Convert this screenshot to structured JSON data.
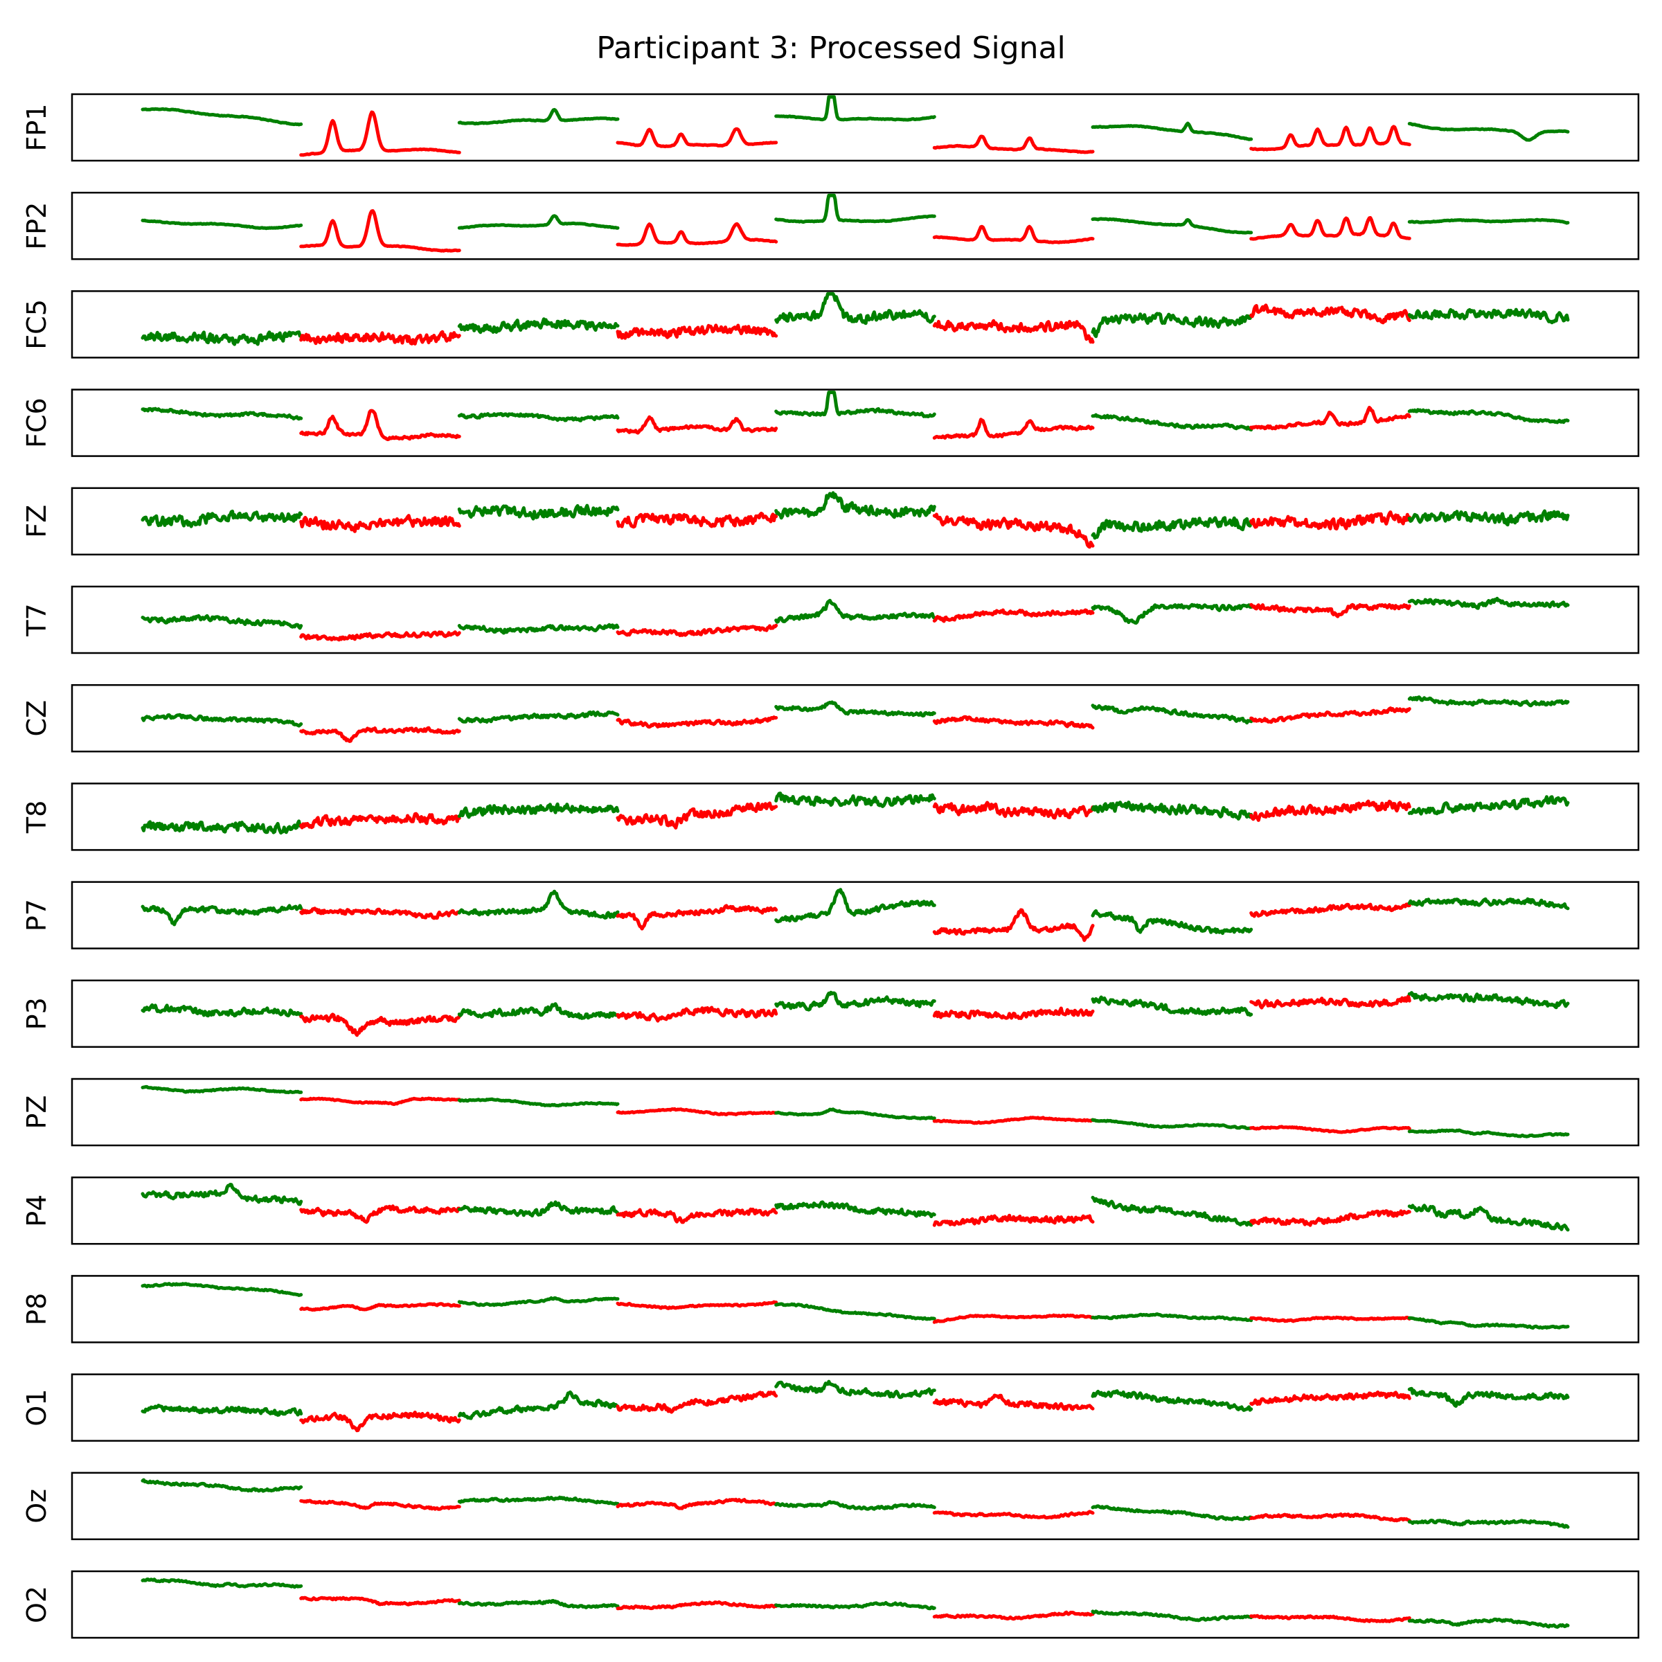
{
  "chart_data": {
    "type": "line",
    "title": "Participant 3: Processed Signal",
    "xlabel": "",
    "ylabel": "",
    "grid": false,
    "xticks": false,
    "yticks": false,
    "segment_count": 9,
    "segment_labels": [
      "green",
      "red",
      "green",
      "red",
      "green",
      "red",
      "green",
      "red",
      "green"
    ],
    "segment_colors": [
      "#008000",
      "#ff0000",
      "#008000",
      "#ff0000",
      "#008000",
      "#ff0000",
      "#008000",
      "#ff0000",
      "#008000"
    ],
    "ylim": [
      0,
      1
    ],
    "channels": [
      {
        "name": "FP1",
        "noise": 0.006,
        "missing": [],
        "levels": [
          0.82,
          0.6,
          0.05,
          0.08,
          0.62,
          0.62,
          0.2,
          0.18,
          0.65,
          0.68,
          0.12,
          0.1,
          0.55,
          0.32,
          0.15,
          0.18,
          0.55,
          0.38
        ],
        "events": [
          [
            1.2,
            0.55,
            0.2
          ],
          [
            1.45,
            0.7,
            0.25
          ],
          [
            2.6,
            0.2,
            0.15
          ],
          [
            3.2,
            0.3,
            0.2
          ],
          [
            3.4,
            0.2,
            0.15
          ],
          [
            3.75,
            0.3,
            0.25
          ],
          [
            4.35,
            0.85,
            -0.1
          ],
          [
            5.3,
            0.2,
            0.15
          ],
          [
            5.6,
            0.2,
            0.15
          ],
          [
            6.6,
            0.15,
            0.1
          ],
          [
            7.25,
            0.22,
            0.15
          ],
          [
            7.42,
            0.28,
            0.15
          ],
          [
            7.6,
            0.32,
            0.15
          ],
          [
            7.75,
            0.3,
            0.15
          ],
          [
            7.9,
            0.3,
            0.15
          ],
          [
            8.75,
            -0.15,
            0.4
          ]
        ]
      },
      {
        "name": "FP2",
        "noise": 0.006,
        "missing": [],
        "levels": [
          0.55,
          0.5,
          0.12,
          0.1,
          0.5,
          0.5,
          0.2,
          0.2,
          0.6,
          0.62,
          0.25,
          0.25,
          0.6,
          0.42,
          0.3,
          0.32,
          0.62,
          0.55
        ],
        "events": [
          [
            1.2,
            0.45,
            0.2
          ],
          [
            1.45,
            0.65,
            0.25
          ],
          [
            2.6,
            0.15,
            0.15
          ],
          [
            3.2,
            0.35,
            0.2
          ],
          [
            3.4,
            0.2,
            0.15
          ],
          [
            3.75,
            0.3,
            0.25
          ],
          [
            4.35,
            0.95,
            -0.12
          ],
          [
            5.3,
            0.25,
            0.15
          ],
          [
            5.6,
            0.25,
            0.15
          ],
          [
            6.6,
            0.1,
            0.1
          ],
          [
            7.25,
            0.2,
            0.15
          ],
          [
            7.42,
            0.28,
            0.15
          ],
          [
            7.6,
            0.3,
            0.15
          ],
          [
            7.75,
            0.3,
            0.15
          ],
          [
            7.9,
            0.25,
            0.15
          ]
        ]
      },
      {
        "name": "FC5",
        "noise": 0.07,
        "missing": [],
        "levels": [
          0.28,
          0.25,
          0.22,
          0.3,
          0.4,
          0.55,
          0.35,
          0.4,
          0.65,
          0.62,
          0.5,
          0.45,
          0.6,
          0.58,
          0.7,
          0.68,
          0.7,
          0.65
        ],
        "events": [
          [
            4.35,
            0.5,
            0.35
          ],
          [
            6.0,
            -0.3,
            0.4
          ],
          [
            7.1,
            0.05,
            0.4
          ]
        ]
      },
      {
        "name": "FC6",
        "noise": 0.025,
        "missing": [],
        "levels": [
          0.75,
          0.58,
          0.3,
          0.25,
          0.62,
          0.6,
          0.35,
          0.4,
          0.7,
          0.65,
          0.25,
          0.4,
          0.62,
          0.38,
          0.38,
          0.62,
          0.72,
          0.55
        ],
        "events": [
          [
            1.2,
            0.3,
            0.2
          ],
          [
            1.45,
            0.5,
            0.25
          ],
          [
            3.2,
            0.25,
            0.2
          ],
          [
            3.75,
            0.2,
            0.2
          ],
          [
            4.35,
            0.85,
            -0.1
          ],
          [
            5.3,
            0.3,
            0.15
          ],
          [
            5.6,
            0.2,
            0.15
          ],
          [
            7.5,
            0.2,
            0.15
          ],
          [
            7.75,
            0.25,
            0.15
          ]
        ]
      },
      {
        "name": "FZ",
        "noise": 0.08,
        "missing": [],
        "levels": [
          0.55,
          0.55,
          0.45,
          0.5,
          0.65,
          0.7,
          0.5,
          0.55,
          0.65,
          0.7,
          0.55,
          0.3,
          0.45,
          0.45,
          0.45,
          0.55,
          0.55,
          0.6
        ],
        "events": [
          [
            4.35,
            0.3,
            0.4
          ],
          [
            6.0,
            -0.2,
            0.5
          ]
        ]
      },
      {
        "name": "T7",
        "noise": 0.035,
        "missing": [],
        "levels": [
          0.55,
          0.4,
          0.2,
          0.22,
          0.35,
          0.35,
          0.22,
          0.38,
          0.5,
          0.6,
          0.55,
          0.65,
          0.75,
          0.7,
          0.72,
          0.72,
          0.8,
          0.78
        ],
        "events": [
          [
            4.35,
            0.25,
            0.35
          ],
          [
            6.25,
            -0.25,
            0.6
          ],
          [
            7.55,
            -0.15,
            0.3
          ],
          [
            8.55,
            0.1,
            0.5
          ]
        ]
      },
      {
        "name": "CZ",
        "noise": 0.03,
        "missing": [],
        "levels": [
          0.5,
          0.45,
          0.3,
          0.25,
          0.5,
          0.55,
          0.4,
          0.45,
          0.65,
          0.6,
          0.45,
          0.4,
          0.75,
          0.45,
          0.5,
          0.62,
          0.85,
          0.75
        ],
        "events": [
          [
            1.3,
            -0.2,
            0.4
          ],
          [
            4.35,
            0.2,
            0.35
          ],
          [
            6.2,
            -0.1,
            0.4
          ]
        ]
      },
      {
        "name": "T8",
        "noise": 0.07,
        "missing": [],
        "levels": [
          0.28,
          0.35,
          0.38,
          0.5,
          0.62,
          0.62,
          0.45,
          0.65,
          0.8,
          0.8,
          0.6,
          0.6,
          0.65,
          0.6,
          0.55,
          0.7,
          0.65,
          0.75
        ],
        "events": [
          [
            3.35,
            -0.15,
            0.4
          ],
          [
            5.35,
            0.1,
            0.35
          ]
        ]
      },
      {
        "name": "P7",
        "noise": 0.04,
        "missing": [
          6.5
        ],
        "levels": [
          0.6,
          0.6,
          0.55,
          0.55,
          0.55,
          0.55,
          0.5,
          0.6,
          0.45,
          0.7,
          0.2,
          0.3,
          0.5,
          0.2,
          0.5,
          0.7,
          0.75,
          0.7
        ],
        "events": [
          [
            0.2,
            -0.25,
            0.25
          ],
          [
            3.15,
            -0.25,
            0.2
          ],
          [
            4.4,
            0.4,
            0.3
          ],
          [
            5.55,
            0.35,
            0.35
          ],
          [
            5.95,
            -0.25,
            0.25
          ],
          [
            6.3,
            -0.2,
            0.2
          ],
          [
            2.6,
            0.3,
            0.3
          ]
        ]
      },
      {
        "name": "P3",
        "noise": 0.05,
        "missing": [],
        "levels": [
          0.6,
          0.5,
          0.4,
          0.4,
          0.5,
          0.5,
          0.45,
          0.55,
          0.65,
          0.7,
          0.5,
          0.5,
          0.75,
          0.5,
          0.65,
          0.75,
          0.8,
          0.7
        ],
        "events": [
          [
            1.35,
            -0.25,
            0.45
          ],
          [
            3.3,
            -0.1,
            0.35
          ],
          [
            4.35,
            0.2,
            0.35
          ],
          [
            2.6,
            0.15,
            0.35
          ]
        ]
      },
      {
        "name": "PZ",
        "noise": 0.01,
        "missing": [],
        "levels": [
          0.95,
          0.85,
          0.72,
          0.72,
          0.7,
          0.65,
          0.5,
          0.5,
          0.5,
          0.4,
          0.35,
          0.35,
          0.35,
          0.2,
          0.2,
          0.2,
          0.15,
          0.1
        ],
        "events": [
          [
            1.6,
            -0.05,
            0.45
          ],
          [
            4.35,
            0.06,
            0.3
          ],
          [
            8.4,
            -0.05,
            0.45
          ]
        ]
      },
      {
        "name": "P4",
        "noise": 0.045,
        "missing": [],
        "levels": [
          0.85,
          0.65,
          0.5,
          0.5,
          0.5,
          0.5,
          0.4,
          0.5,
          0.6,
          0.45,
          0.3,
          0.35,
          0.7,
          0.25,
          0.28,
          0.45,
          0.55,
          0.2
        ],
        "events": [
          [
            0.55,
            0.15,
            0.35
          ],
          [
            1.4,
            -0.15,
            0.35
          ],
          [
            2.6,
            0.15,
            0.3
          ],
          [
            3.4,
            -0.1,
            0.3
          ],
          [
            8.45,
            0.2,
            0.35
          ],
          [
            8.2,
            -0.1,
            0.25
          ]
        ]
      },
      {
        "name": "P8",
        "noise": 0.012,
        "missing": [],
        "levels": [
          0.95,
          0.8,
          0.55,
          0.55,
          0.62,
          0.65,
          0.55,
          0.6,
          0.55,
          0.35,
          0.3,
          0.4,
          0.4,
          0.3,
          0.35,
          0.3,
          0.3,
          0.15
        ],
        "events": [
          [
            1.4,
            -0.08,
            0.4
          ],
          [
            2.6,
            0.05,
            0.35
          ],
          [
            8.3,
            0.05,
            0.4
          ]
        ]
      },
      {
        "name": "O1",
        "noise": 0.045,
        "missing": [],
        "levels": [
          0.45,
          0.45,
          0.3,
          0.35,
          0.4,
          0.55,
          0.5,
          0.7,
          0.85,
          0.75,
          0.55,
          0.55,
          0.75,
          0.5,
          0.65,
          0.7,
          0.8,
          0.65
        ],
        "events": [
          [
            1.35,
            -0.2,
            0.4
          ],
          [
            2.7,
            0.2,
            0.4
          ],
          [
            3.35,
            -0.1,
            0.35
          ],
          [
            4.35,
            0.15,
            0.35
          ],
          [
            5.4,
            0.15,
            0.4
          ],
          [
            8.3,
            -0.15,
            0.4
          ]
        ]
      },
      {
        "name": "Oz",
        "noise": 0.018,
        "missing": [],
        "levels": [
          0.92,
          0.8,
          0.55,
          0.5,
          0.6,
          0.6,
          0.55,
          0.55,
          0.55,
          0.45,
          0.35,
          0.35,
          0.45,
          0.3,
          0.3,
          0.3,
          0.25,
          0.15
        ],
        "events": [
          [
            1.4,
            -0.08,
            0.35
          ],
          [
            3.4,
            -0.06,
            0.35
          ],
          [
            4.35,
            0.05,
            0.35
          ],
          [
            8.3,
            -0.05,
            0.4
          ]
        ]
      },
      {
        "name": "O2",
        "noise": 0.016,
        "missing": [],
        "levels": [
          0.95,
          0.8,
          0.6,
          0.55,
          0.5,
          0.5,
          0.45,
          0.5,
          0.5,
          0.45,
          0.3,
          0.3,
          0.35,
          0.25,
          0.25,
          0.25,
          0.2,
          0.15
        ],
        "events": [
          [
            0.55,
            0.05,
            0.3
          ],
          [
            1.5,
            -0.05,
            0.3
          ],
          [
            2.6,
            0.05,
            0.35
          ],
          [
            8.3,
            -0.05,
            0.4
          ]
        ]
      }
    ]
  }
}
